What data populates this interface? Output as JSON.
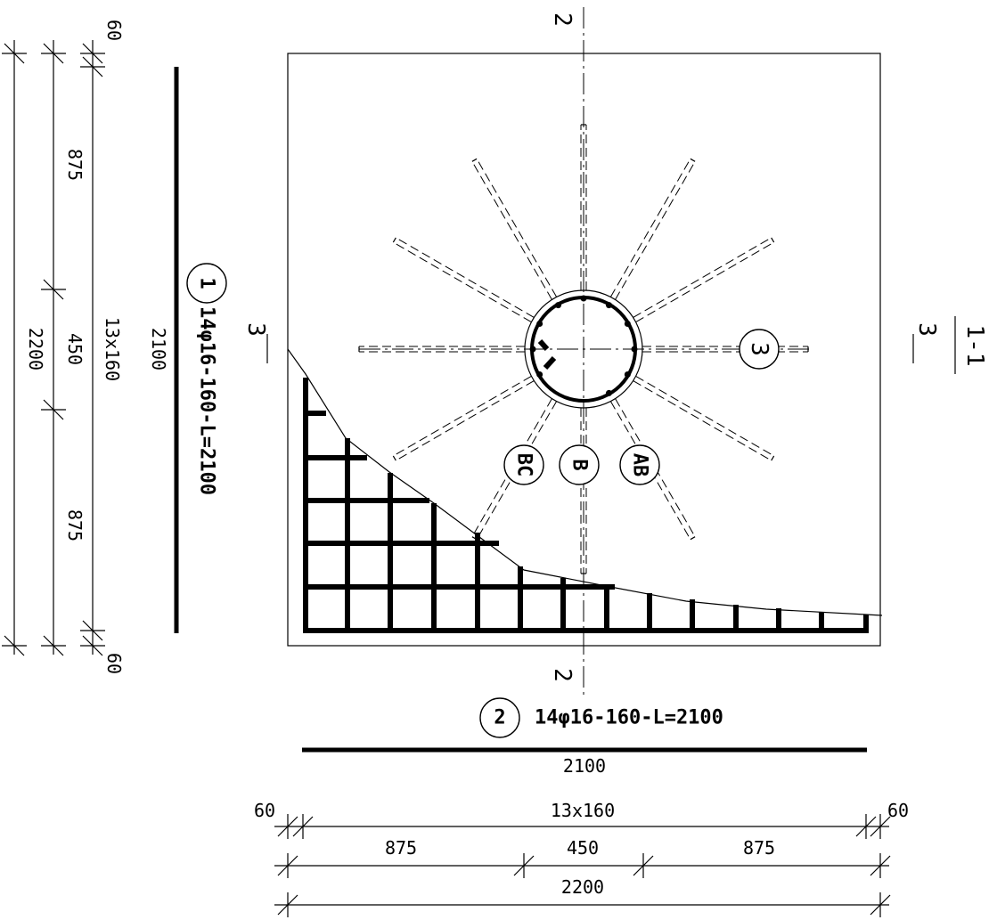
{
  "section": {
    "title": "1-1",
    "cut_label_2": "2",
    "cut_label_3": "3"
  },
  "bar1": {
    "mark": "1",
    "spec": "14φ16-160-L=2100",
    "length": "2100"
  },
  "bar2": {
    "mark": "2",
    "spec": "14φ16-160-L=2100",
    "length": "2100"
  },
  "bar3": {
    "mark": "3"
  },
  "axes": {
    "ab": "AB",
    "b": "B",
    "bc": "BC"
  },
  "dims_left": {
    "edge_top": "60",
    "part_top": "875",
    "part_mid": "450",
    "part_bottom": "875",
    "spacing": "13x160",
    "total": "2200",
    "edge_bottom": "60"
  },
  "dims_bottom": {
    "edge_left": "60",
    "spacing": "13x160",
    "edge_right": "60",
    "part_left": "875",
    "part_mid": "450",
    "part_right": "875",
    "total": "2200"
  }
}
